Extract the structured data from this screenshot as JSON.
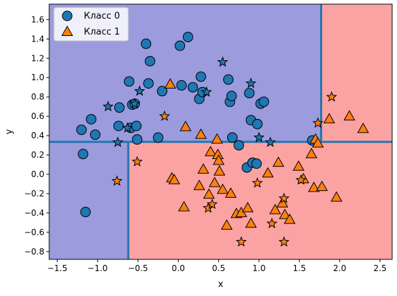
{
  "chart_data": {
    "type": "scatter",
    "xlabel": "x",
    "ylabel": "y",
    "xlim": [
      -1.6,
      2.65
    ],
    "ylim": [
      -0.88,
      1.76
    ],
    "xticks": [
      "−1.5",
      "−1.0",
      "−0.5",
      "0.0",
      "0.5",
      "1.0",
      "1.5",
      "2.0",
      "2.5"
    ],
    "xtick_values": [
      -1.5,
      -1.0,
      -0.5,
      0.0,
      0.5,
      1.0,
      1.5,
      2.0,
      2.5
    ],
    "yticks": [
      "−0.8",
      "−0.6",
      "−0.4",
      "−0.2",
      "0.0",
      "0.2",
      "0.4",
      "0.6",
      "0.8",
      "1.0",
      "1.2",
      "1.4",
      "1.6"
    ],
    "ytick_values": [
      -0.8,
      -0.6,
      -0.4,
      -0.2,
      0.0,
      0.2,
      0.4,
      0.6,
      0.8,
      1.0,
      1.2,
      1.4,
      1.6
    ],
    "grid": false,
    "legend_position": "top-left",
    "colors": {
      "region_class0": "#9b9bdd",
      "region_class1": "#fba3a3",
      "boundary": "#1f77b4",
      "class0": "#1f77b4",
      "class1": "#ff7f0e",
      "marker_edge": "#000000"
    },
    "decision_boundary": {
      "horizontal_split_y": 0.335,
      "left_split_x": -0.62,
      "right_split_x": 1.77
    },
    "series": [
      {
        "name": "Класс 0",
        "marker": "circle",
        "points": [
          [
            -1.18,
            0.21
          ],
          [
            -1.15,
            -0.39
          ],
          [
            -1.2,
            0.46
          ],
          [
            -1.08,
            0.57
          ],
          [
            -1.03,
            0.41
          ],
          [
            -0.74,
            0.5
          ],
          [
            -0.73,
            0.69
          ],
          [
            -0.61,
            0.96
          ],
          [
            -0.59,
            0.48
          ],
          [
            -0.57,
            0.72
          ],
          [
            -0.54,
            0.73
          ],
          [
            -0.52,
            0.5
          ],
          [
            -0.51,
            0.36
          ],
          [
            -0.4,
            1.35
          ],
          [
            -0.37,
            0.94
          ],
          [
            -0.35,
            1.17
          ],
          [
            -0.25,
            0.38
          ],
          [
            -0.2,
            0.86
          ],
          [
            0.02,
            1.33
          ],
          [
            0.04,
            0.92
          ],
          [
            0.12,
            1.42
          ],
          [
            0.18,
            0.9
          ],
          [
            0.26,
            0.78
          ],
          [
            0.28,
            1.01
          ],
          [
            0.3,
            0.85
          ],
          [
            0.62,
            0.98
          ],
          [
            0.64,
            0.75
          ],
          [
            0.66,
            0.81
          ],
          [
            0.67,
            0.38
          ],
          [
            0.75,
            0.3
          ],
          [
            0.85,
            0.07
          ],
          [
            0.88,
            0.84
          ],
          [
            0.9,
            0.56
          ],
          [
            0.92,
            0.12
          ],
          [
            0.98,
            0.52
          ],
          [
            1.02,
            0.73
          ],
          [
            1.06,
            0.75
          ],
          [
            1.66,
            0.35
          ],
          [
            0.97,
            0.11
          ]
        ]
      },
      {
        "name": "Класс 1",
        "marker": "triangle",
        "points": [
          [
            -0.1,
            0.93
          ],
          [
            -0.08,
            -0.04
          ],
          [
            -0.05,
            -0.06
          ],
          [
            0.07,
            -0.34
          ],
          [
            0.09,
            0.49
          ],
          [
            0.26,
            -0.12
          ],
          [
            0.28,
            0.41
          ],
          [
            0.31,
            0.05
          ],
          [
            0.38,
            -0.21
          ],
          [
            0.4,
            0.23
          ],
          [
            0.45,
            -0.09
          ],
          [
            0.48,
            0.36
          ],
          [
            0.49,
            0.2
          ],
          [
            0.5,
            0.14
          ],
          [
            0.51,
            0.03
          ],
          [
            0.55,
            -0.16
          ],
          [
            0.6,
            -0.53
          ],
          [
            0.65,
            -0.2
          ],
          [
            0.72,
            -0.41
          ],
          [
            0.78,
            -0.4
          ],
          [
            0.86,
            -0.35
          ],
          [
            0.9,
            -0.51
          ],
          [
            1.11,
            0.01
          ],
          [
            1.2,
            -0.37
          ],
          [
            1.24,
            0.12
          ],
          [
            1.29,
            -0.3
          ],
          [
            1.32,
            -0.42
          ],
          [
            1.38,
            -0.47
          ],
          [
            1.49,
            0.08
          ],
          [
            1.55,
            -0.05
          ],
          [
            1.65,
            0.21
          ],
          [
            1.68,
            -0.14
          ],
          [
            1.7,
            0.36
          ],
          [
            1.73,
            0.32
          ],
          [
            1.78,
            -0.13
          ],
          [
            1.87,
            0.57
          ],
          [
            1.96,
            -0.24
          ],
          [
            2.12,
            0.6
          ],
          [
            2.29,
            0.47
          ]
        ]
      },
      {
        "name": "",
        "marker": "star",
        "class": 0,
        "points": [
          [
            -0.87,
            0.7
          ],
          [
            -0.75,
            0.33
          ],
          [
            -0.63,
            0.48
          ],
          [
            -0.54,
            0.73
          ],
          [
            -0.48,
            0.86
          ],
          [
            0.35,
            0.85
          ],
          [
            0.55,
            1.16
          ],
          [
            0.9,
            0.94
          ],
          [
            1.0,
            0.38
          ],
          [
            1.14,
            0.33
          ]
        ]
      },
      {
        "name": "",
        "marker": "star",
        "class": 1,
        "points": [
          [
            -0.76,
            -0.07
          ],
          [
            -0.51,
            0.13
          ],
          [
            -0.17,
            0.6
          ],
          [
            0.37,
            -0.35
          ],
          [
            0.42,
            -0.31
          ],
          [
            0.78,
            -0.7
          ],
          [
            0.98,
            -0.09
          ],
          [
            1.16,
            -0.51
          ],
          [
            1.31,
            -0.25
          ],
          [
            1.31,
            -0.7
          ],
          [
            1.52,
            -0.06
          ],
          [
            1.73,
            0.53
          ],
          [
            1.9,
            0.8
          ]
        ]
      }
    ]
  }
}
